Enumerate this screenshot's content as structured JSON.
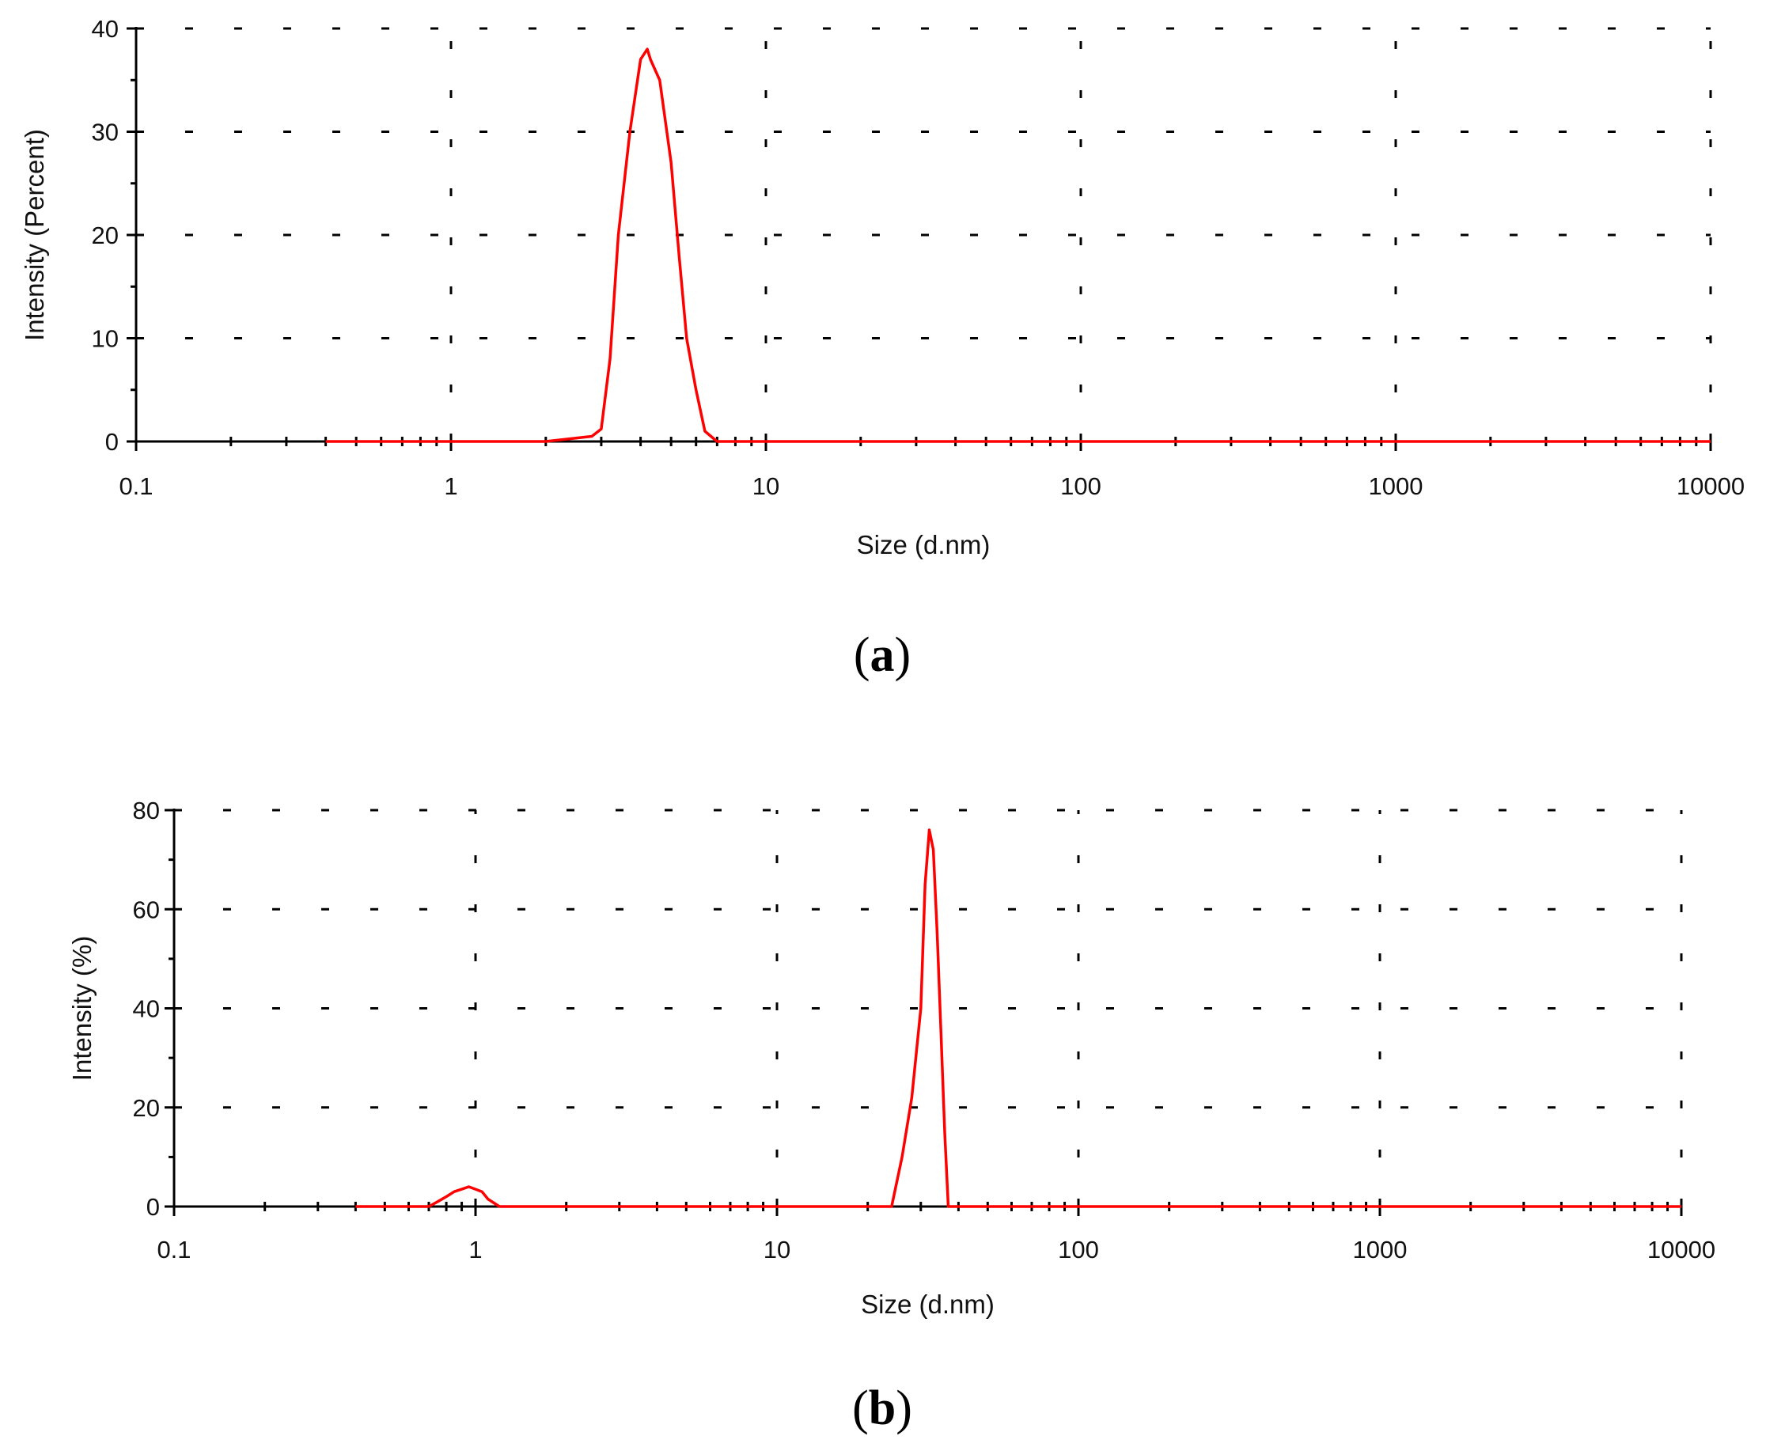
{
  "chart_data": [
    {
      "type": "line",
      "panel_label": "a",
      "xlabel": "Size (d.nm)",
      "ylabel": "Intensity (Percent)",
      "xscale": "log",
      "xlim": [
        0.1,
        10000
      ],
      "ylim": [
        0,
        40
      ],
      "xticks": [
        "0.1",
        "1",
        "10",
        "100",
        "1000",
        "10000"
      ],
      "yticks": [
        "0",
        "10",
        "20",
        "30",
        "40"
      ],
      "grid": true,
      "series": [
        {
          "color": "#ff0000",
          "x": [
            0.4,
            1,
            2,
            2.8,
            3.0,
            3.2,
            3.4,
            3.7,
            4.0,
            4.2,
            4.3,
            4.6,
            5.0,
            5.3,
            5.6,
            6.0,
            6.4,
            7.0,
            8,
            20,
            100,
            1000,
            10000
          ],
          "y": [
            0,
            0,
            0,
            0.5,
            1.2,
            8,
            20,
            30,
            37,
            38,
            37,
            35,
            27,
            18,
            10,
            5,
            1,
            0,
            0,
            0,
            0,
            0,
            0
          ]
        }
      ]
    },
    {
      "type": "line",
      "panel_label": "b",
      "xlabel": "Size (d.nm)",
      "ylabel": "Intensity (%)",
      "xscale": "log",
      "xlim": [
        0.1,
        10000
      ],
      "ylim": [
        0,
        80
      ],
      "xticks": [
        "0.1",
        "1",
        "10",
        "100",
        "1000",
        "10000"
      ],
      "yticks": [
        "0",
        "20",
        "40",
        "60",
        "80"
      ],
      "grid": true,
      "series": [
        {
          "color": "#ff0000",
          "x": [
            0.4,
            0.7,
            0.75,
            0.8,
            0.85,
            0.9,
            0.95,
            1.0,
            1.05,
            1.1,
            1.2,
            2,
            10,
            20,
            24,
            26,
            28,
            30,
            31,
            32,
            33,
            34,
            35,
            36,
            37,
            100,
            1000,
            10000
          ],
          "y": [
            0,
            0,
            1,
            2,
            3,
            3.5,
            4,
            3.5,
            3,
            1.5,
            0,
            0,
            0,
            0,
            0,
            10,
            22,
            40,
            65,
            76,
            72,
            55,
            35,
            15,
            0,
            0,
            0,
            0
          ]
        }
      ]
    }
  ]
}
